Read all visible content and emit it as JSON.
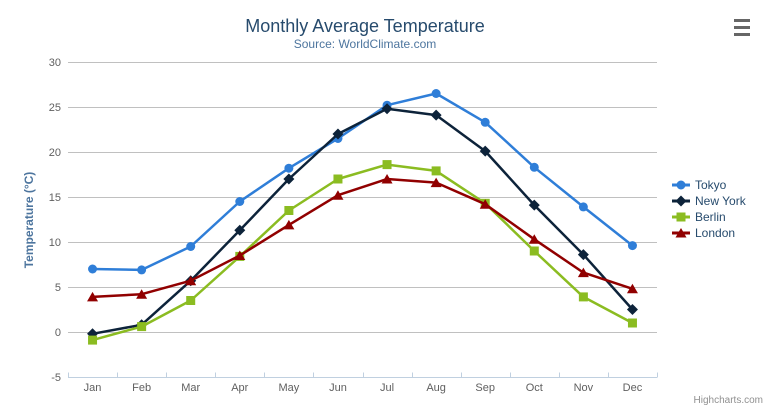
{
  "header": {
    "export_menu_icon": "hamburger"
  },
  "credits": {
    "label": "Highcharts.com"
  },
  "chart_data": {
    "type": "line",
    "title": "Monthly Average Temperature",
    "subtitle": "Source: WorldClimate.com",
    "xlabel": "",
    "ylabel": "Temperature (°C)",
    "categories": [
      "Jan",
      "Feb",
      "Mar",
      "Apr",
      "May",
      "Jun",
      "Jul",
      "Aug",
      "Sep",
      "Oct",
      "Nov",
      "Dec"
    ],
    "ylim": [
      -5,
      30
    ],
    "yticks": [
      -5,
      0,
      5,
      10,
      15,
      20,
      25,
      30
    ],
    "grid": true,
    "legend_position": "right",
    "series": [
      {
        "name": "Tokyo",
        "color": "#2f7ed8",
        "marker": "circle",
        "values": [
          7.0,
          6.9,
          9.5,
          14.5,
          18.2,
          21.5,
          25.2,
          26.5,
          23.3,
          18.3,
          13.9,
          9.6
        ]
      },
      {
        "name": "New York",
        "color": "#0d233a",
        "marker": "diamond",
        "values": [
          -0.2,
          0.8,
          5.7,
          11.3,
          17.0,
          22.0,
          24.8,
          24.1,
          20.1,
          14.1,
          8.6,
          2.5
        ]
      },
      {
        "name": "Berlin",
        "color": "#8bbc21",
        "marker": "square",
        "values": [
          -0.9,
          0.6,
          3.5,
          8.4,
          13.5,
          17.0,
          18.6,
          17.9,
          14.3,
          9.0,
          3.9,
          1.0
        ]
      },
      {
        "name": "London",
        "color": "#910000",
        "marker": "triangle",
        "values": [
          3.9,
          4.2,
          5.7,
          8.5,
          11.9,
          15.2,
          17.0,
          16.6,
          14.2,
          10.3,
          6.6,
          4.8
        ]
      }
    ]
  },
  "theme": {
    "title_color": "#274b6d",
    "subtitle_color": "#4d759e",
    "axis_label_color": "#606060",
    "axis_title_color": "#4d759e",
    "legend_text_color": "#274b6d",
    "gridline_color": "#C0C0C0",
    "axis_line_color": "#C0D0E0",
    "credits_color": "#909090",
    "menu_icon_color": "#666666",
    "background": "#FFFFFF"
  }
}
